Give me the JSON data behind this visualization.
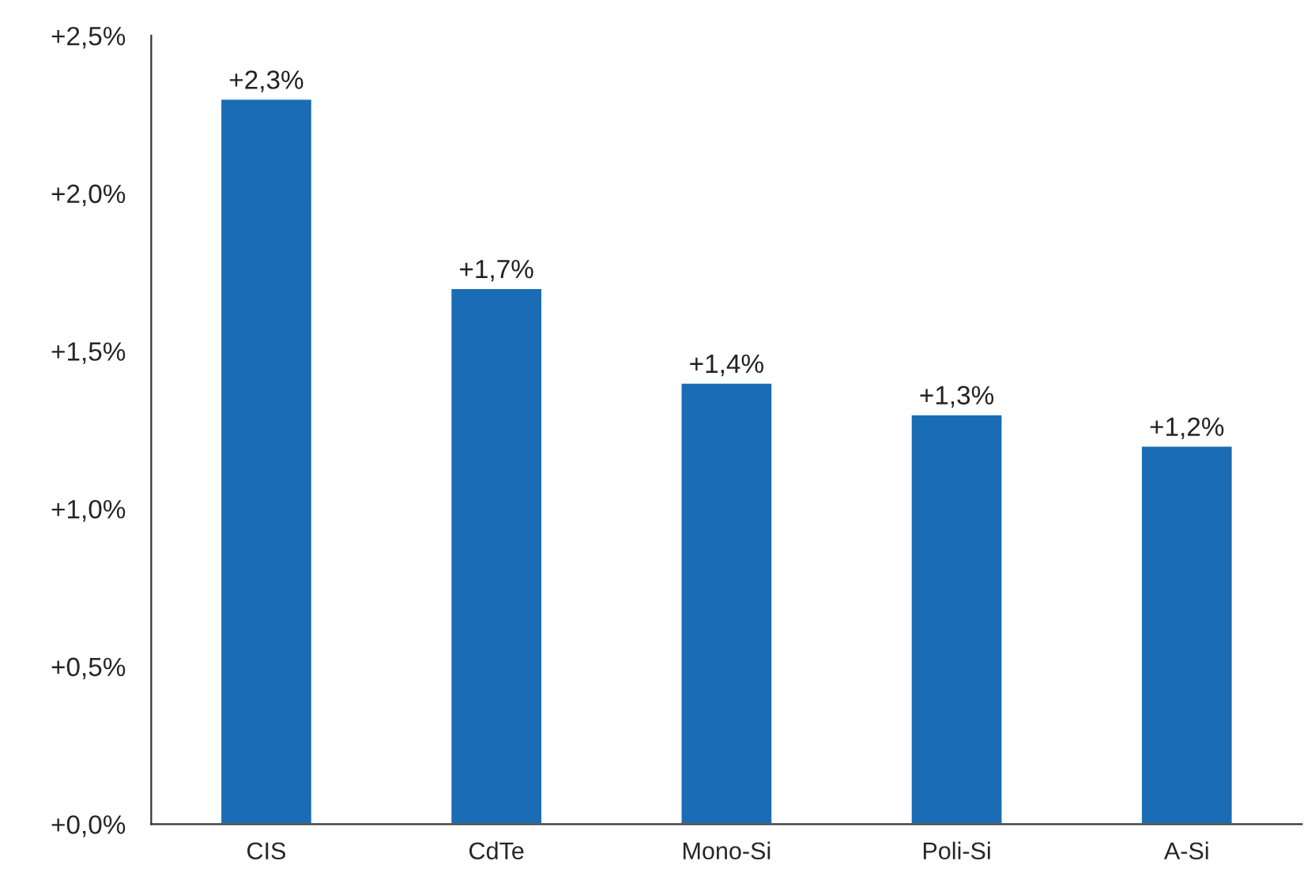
{
  "chart_data": {
    "type": "bar",
    "categories": [
      "CIS",
      "CdTe",
      "Mono-Si",
      "Poli-Si",
      "A-Si"
    ],
    "values": [
      2.3,
      1.7,
      1.4,
      1.3,
      1.2
    ],
    "value_labels": [
      "+2,3%",
      "+1,7%",
      "+1,4%",
      "+1,3%",
      "+1,2%"
    ],
    "color": "#1a6db5",
    "ylim": [
      0,
      2.5
    ],
    "yticks": [
      {
        "value": 0,
        "label": "+0,0%"
      },
      {
        "value": 0.5,
        "label": "+0,5%"
      },
      {
        "value": 1.0,
        "label": "+1,0%"
      },
      {
        "value": 1.5,
        "label": "+1,5%"
      },
      {
        "value": 2.0,
        "label": "+2,0%"
      },
      {
        "value": 2.5,
        "label": "+2,5%"
      }
    ]
  }
}
